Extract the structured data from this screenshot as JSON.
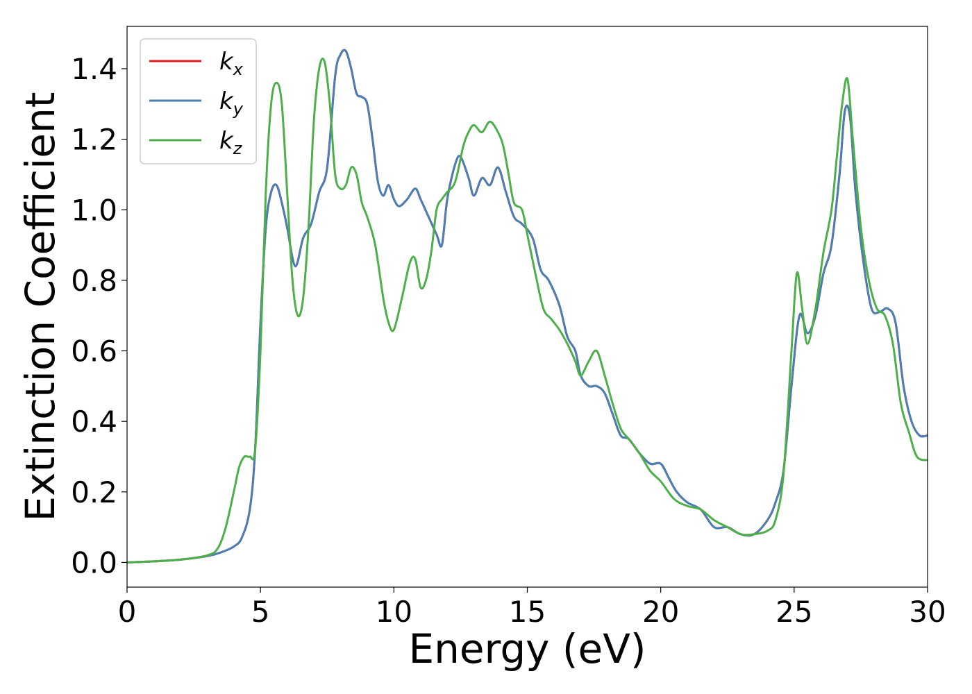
{
  "chart_data": {
    "type": "line",
    "title": "",
    "xlabel": "Energy (eV)",
    "ylabel": "Extinction Coefficient",
    "xlim": [
      0,
      30
    ],
    "ylim": [
      -0.07,
      1.52
    ],
    "xticks": [
      0,
      5,
      10,
      15,
      20,
      25,
      30
    ],
    "xtick_labels": [
      "0",
      "5",
      "10",
      "15",
      "20",
      "25",
      "30"
    ],
    "yticks": [
      0.0,
      0.2,
      0.4,
      0.6,
      0.8,
      1.0,
      1.2,
      1.4
    ],
    "ytick_labels": [
      "0.0",
      "0.2",
      "0.4",
      "0.6",
      "0.8",
      "1.0",
      "1.2",
      "1.4"
    ],
    "grid": false,
    "legend": {
      "position": "top-left"
    },
    "series": [
      {
        "name": "k_x",
        "label_main": "k",
        "label_sub": "x",
        "color": "#e41a1c",
        "x": [
          0,
          1,
          2,
          3,
          3.5,
          4,
          4.3,
          4.6,
          4.8,
          5.0,
          5.2,
          5.4,
          5.6,
          5.8,
          6.0,
          6.3,
          6.6,
          6.9,
          7.2,
          7.5,
          7.8,
          8.0,
          8.2,
          8.4,
          8.6,
          8.8,
          9.0,
          9.2,
          9.4,
          9.6,
          9.8,
          10.0,
          10.2,
          10.5,
          10.8,
          11.0,
          11.3,
          11.6,
          11.8,
          12.0,
          12.3,
          12.5,
          12.8,
          13.0,
          13.3,
          13.6,
          13.9,
          14.2,
          14.5,
          14.8,
          15.2,
          15.5,
          15.8,
          16.2,
          16.5,
          16.8,
          17.0,
          17.3,
          17.6,
          17.9,
          18.2,
          18.5,
          18.8,
          19.2,
          19.6,
          20.0,
          20.3,
          20.6,
          21.0,
          21.5,
          22.0,
          22.5,
          23.0,
          23.5,
          24.0,
          24.3,
          24.6,
          24.9,
          25.2,
          25.5,
          25.8,
          26.1,
          26.4,
          26.7,
          26.9,
          27.1,
          27.3,
          27.6,
          27.9,
          28.2,
          28.5,
          28.8,
          29.1,
          29.4,
          29.7,
          30.0
        ],
        "values": [
          0.0,
          0.003,
          0.008,
          0.018,
          0.028,
          0.045,
          0.07,
          0.15,
          0.32,
          0.68,
          0.95,
          1.05,
          1.07,
          1.02,
          0.95,
          0.84,
          0.92,
          0.96,
          1.05,
          1.12,
          1.38,
          1.44,
          1.45,
          1.4,
          1.33,
          1.32,
          1.3,
          1.2,
          1.08,
          1.04,
          1.07,
          1.03,
          1.01,
          1.03,
          1.06,
          1.03,
          0.98,
          0.93,
          0.9,
          1.03,
          1.13,
          1.15,
          1.09,
          1.04,
          1.09,
          1.07,
          1.12,
          1.05,
          0.98,
          0.96,
          0.92,
          0.83,
          0.8,
          0.73,
          0.64,
          0.6,
          0.53,
          0.5,
          0.5,
          0.48,
          0.42,
          0.36,
          0.35,
          0.31,
          0.28,
          0.28,
          0.24,
          0.2,
          0.17,
          0.15,
          0.1,
          0.1,
          0.08,
          0.08,
          0.12,
          0.17,
          0.26,
          0.5,
          0.7,
          0.65,
          0.7,
          0.82,
          0.9,
          1.1,
          1.28,
          1.26,
          1.05,
          0.85,
          0.72,
          0.71,
          0.72,
          0.68,
          0.5,
          0.4,
          0.36,
          0.36
        ]
      },
      {
        "name": "k_y",
        "label_main": "k",
        "label_sub": "y",
        "color": "#4a7fb5",
        "x": [
          0,
          1,
          2,
          3,
          3.5,
          4,
          4.3,
          4.6,
          4.8,
          5.0,
          5.2,
          5.4,
          5.6,
          5.8,
          6.0,
          6.3,
          6.6,
          6.9,
          7.2,
          7.5,
          7.8,
          8.0,
          8.2,
          8.4,
          8.6,
          8.8,
          9.0,
          9.2,
          9.4,
          9.6,
          9.8,
          10.0,
          10.2,
          10.5,
          10.8,
          11.0,
          11.3,
          11.6,
          11.8,
          12.0,
          12.3,
          12.5,
          12.8,
          13.0,
          13.3,
          13.6,
          13.9,
          14.2,
          14.5,
          14.8,
          15.2,
          15.5,
          15.8,
          16.2,
          16.5,
          16.8,
          17.0,
          17.3,
          17.6,
          17.9,
          18.2,
          18.5,
          18.8,
          19.2,
          19.6,
          20.0,
          20.3,
          20.6,
          21.0,
          21.5,
          22.0,
          22.5,
          23.0,
          23.5,
          24.0,
          24.3,
          24.6,
          24.9,
          25.2,
          25.5,
          25.8,
          26.1,
          26.4,
          26.7,
          26.9,
          27.1,
          27.3,
          27.6,
          27.9,
          28.2,
          28.5,
          28.8,
          29.1,
          29.4,
          29.7,
          30.0
        ],
        "values": [
          0.0,
          0.003,
          0.008,
          0.018,
          0.028,
          0.045,
          0.07,
          0.15,
          0.32,
          0.68,
          0.95,
          1.05,
          1.07,
          1.02,
          0.95,
          0.84,
          0.92,
          0.96,
          1.05,
          1.12,
          1.38,
          1.44,
          1.45,
          1.4,
          1.33,
          1.32,
          1.3,
          1.2,
          1.08,
          1.04,
          1.07,
          1.03,
          1.01,
          1.03,
          1.06,
          1.03,
          0.98,
          0.93,
          0.9,
          1.03,
          1.13,
          1.15,
          1.09,
          1.04,
          1.09,
          1.07,
          1.12,
          1.05,
          0.98,
          0.96,
          0.92,
          0.83,
          0.8,
          0.73,
          0.64,
          0.6,
          0.53,
          0.5,
          0.5,
          0.48,
          0.42,
          0.36,
          0.35,
          0.31,
          0.28,
          0.28,
          0.24,
          0.2,
          0.17,
          0.15,
          0.1,
          0.1,
          0.08,
          0.08,
          0.12,
          0.17,
          0.26,
          0.5,
          0.7,
          0.65,
          0.7,
          0.82,
          0.9,
          1.1,
          1.28,
          1.26,
          1.05,
          0.85,
          0.72,
          0.71,
          0.72,
          0.68,
          0.5,
          0.4,
          0.36,
          0.36
        ]
      },
      {
        "name": "k_z",
        "label_main": "k",
        "label_sub": "z",
        "color": "#4daf4a",
        "x": [
          0,
          1,
          2,
          3,
          3.4,
          3.7,
          4.0,
          4.2,
          4.4,
          4.6,
          4.8,
          5.0,
          5.2,
          5.4,
          5.6,
          5.8,
          6.0,
          6.2,
          6.4,
          6.6,
          6.8,
          7.0,
          7.2,
          7.4,
          7.6,
          7.8,
          8.0,
          8.2,
          8.4,
          8.6,
          8.8,
          9.0,
          9.3,
          9.6,
          9.8,
          10.0,
          10.3,
          10.6,
          10.8,
          11.0,
          11.2,
          11.4,
          11.6,
          11.8,
          12.0,
          12.3,
          12.6,
          12.8,
          13.0,
          13.3,
          13.6,
          13.9,
          14.1,
          14.3,
          14.5,
          14.8,
          15.0,
          15.3,
          15.6,
          15.9,
          16.2,
          16.5,
          16.8,
          17.0,
          17.3,
          17.6,
          17.9,
          18.2,
          18.5,
          18.8,
          19.2,
          19.6,
          20.0,
          20.5,
          21.0,
          21.5,
          22.0,
          22.5,
          23.0,
          23.5,
          24.0,
          24.3,
          24.6,
          24.9,
          25.1,
          25.3,
          25.5,
          25.8,
          26.1,
          26.4,
          26.6,
          26.8,
          27.0,
          27.2,
          27.5,
          27.8,
          28.1,
          28.4,
          28.7,
          29.0,
          29.3,
          29.6,
          30.0
        ],
        "values": [
          0.0,
          0.003,
          0.008,
          0.02,
          0.04,
          0.1,
          0.2,
          0.27,
          0.3,
          0.3,
          0.32,
          0.6,
          1.05,
          1.3,
          1.36,
          1.3,
          1.05,
          0.8,
          0.7,
          0.75,
          0.95,
          1.25,
          1.4,
          1.42,
          1.3,
          1.1,
          1.06,
          1.07,
          1.12,
          1.1,
          1.02,
          0.98,
          0.9,
          0.75,
          0.68,
          0.66,
          0.75,
          0.85,
          0.86,
          0.78,
          0.8,
          0.88,
          1.0,
          1.03,
          1.05,
          1.08,
          1.18,
          1.22,
          1.24,
          1.22,
          1.25,
          1.22,
          1.18,
          1.1,
          1.02,
          1.0,
          0.93,
          0.82,
          0.72,
          0.69,
          0.66,
          0.62,
          0.57,
          0.53,
          0.57,
          0.6,
          0.53,
          0.45,
          0.38,
          0.35,
          0.31,
          0.26,
          0.23,
          0.18,
          0.16,
          0.15,
          0.12,
          0.1,
          0.08,
          0.08,
          0.09,
          0.12,
          0.25,
          0.6,
          0.82,
          0.72,
          0.62,
          0.72,
          0.88,
          1.0,
          1.15,
          1.3,
          1.37,
          1.2,
          0.95,
          0.8,
          0.72,
          0.7,
          0.62,
          0.45,
          0.37,
          0.3,
          0.29
        ]
      }
    ]
  }
}
